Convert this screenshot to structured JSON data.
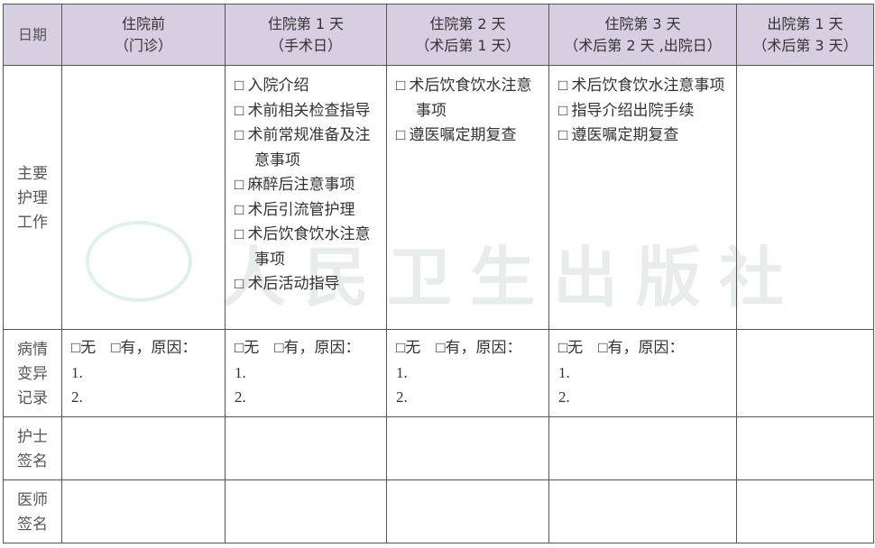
{
  "watermark": {
    "text": "人民卫生出版社"
  },
  "header": {
    "col0": "日期",
    "cols": [
      {
        "line1": "住院前",
        "line2": "（门诊）"
      },
      {
        "line1": "住院第 1 天",
        "line2": "（手术日）"
      },
      {
        "line1": "住院第 2 天",
        "line2": "（术后第 1 天）"
      },
      {
        "line1": "住院第 3 天",
        "line2": "（术后第 2 天 ,出院日）"
      },
      {
        "line1": "出院第 1 天",
        "line2": "（术后第 3 天）"
      }
    ]
  },
  "rows": {
    "main_care": {
      "label": "主要\n护理\n工作",
      "day1": [
        "□ 入院介绍",
        "□ 术前相关检查指导",
        "□ 术前常规准备及注意事项",
        "□ 麻醉后注意事项",
        "□ 术后引流管护理",
        "□ 术后饮食饮水注意事项",
        "□ 术后活动指导"
      ],
      "day2": [
        "□ 术后饮食饮水注意事项",
        "□ 遵医嘱定期复查"
      ],
      "day3": [
        "□ 术后饮食饮水注意事项",
        "□ 指导介绍出院手续",
        "□ 遵医嘱定期复查"
      ]
    },
    "variance": {
      "label": "病情\n变异\n记录",
      "lines": [
        "□无　□有，原因：",
        "1.",
        "2."
      ]
    },
    "nurse": {
      "label": "护士\n签名"
    },
    "doctor": {
      "label": "医师\n签名"
    }
  }
}
